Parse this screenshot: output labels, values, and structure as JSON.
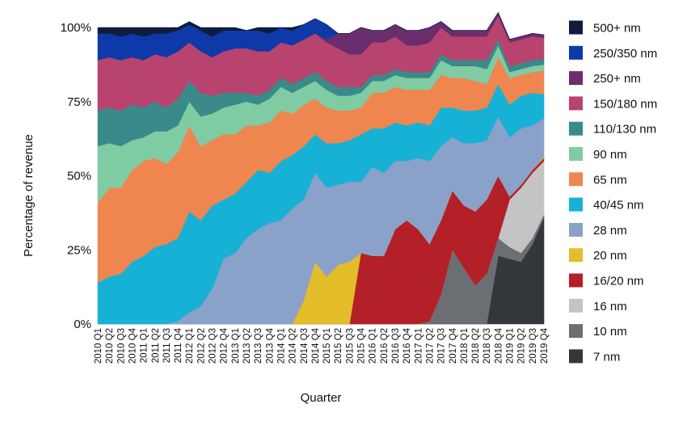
{
  "chart_data": {
    "type": "area",
    "stacked": "percent",
    "xlabel": "Quarter",
    "ylabel": "Percentage of revenue",
    "ylim": [
      0,
      100
    ],
    "yticks": [
      0,
      25,
      50,
      75,
      100
    ],
    "ytick_labels": [
      "0%",
      "25%",
      "50%",
      "75%",
      "100%"
    ],
    "grid": false,
    "legend_position": "right",
    "categories": [
      "2010 Q1",
      "2010 Q2",
      "2010 Q3",
      "2010 Q4",
      "2011 Q1",
      "2011 Q2",
      "2011 Q3",
      "2011 Q4",
      "2012 Q1",
      "2012 Q2",
      "2012 Q3",
      "2012 Q4",
      "2013 Q1",
      "2013 Q2",
      "2013 Q3",
      "2013 Q4",
      "2014 Q1",
      "2014 Q2",
      "2014 Q3",
      "2014 Q4",
      "2015 Q1",
      "2015 Q2",
      "2015 Q3",
      "2015 Q4",
      "2016 Q1",
      "2016 Q2",
      "2016 Q3",
      "2016 Q4",
      "2017 Q1",
      "2017 Q2",
      "2017 Q3",
      "2017 Q4",
      "2018 Q1",
      "2018 Q2",
      "2018 Q3",
      "2018 Q4",
      "2019 Q1",
      "2019 Q2",
      "2019 Q3",
      "2019 Q4"
    ],
    "series": [
      {
        "name": "7 nm",
        "color": "#33363b",
        "values": [
          0,
          0,
          0,
          0,
          0,
          0,
          0,
          0,
          0,
          0,
          0,
          0,
          0,
          0,
          0,
          0,
          0,
          0,
          0,
          0,
          0,
          0,
          0,
          0,
          0,
          0,
          0,
          0,
          0,
          0,
          0,
          0,
          0,
          0,
          0,
          23,
          22,
          21,
          27,
          36
        ]
      },
      {
        "name": "10 nm",
        "color": "#6b6e72",
        "values": [
          0,
          0,
          0,
          0,
          0,
          0,
          0,
          0,
          0,
          0,
          0,
          0,
          0,
          0,
          0,
          0,
          0,
          0,
          0,
          0,
          0,
          0,
          0,
          0,
          0,
          0,
          0,
          0,
          0,
          1,
          10,
          25,
          19,
          13,
          17,
          6,
          4,
          3,
          2,
          1
        ]
      },
      {
        "name": "16 nm",
        "color": "#c4c4c4",
        "values": [
          0,
          0,
          0,
          0,
          0,
          0,
          0,
          0,
          0,
          0,
          0,
          0,
          0,
          0,
          0,
          0,
          0,
          0,
          0,
          0,
          0,
          0,
          0,
          0,
          0,
          0,
          0,
          0,
          0,
          0,
          0,
          0,
          0,
          0,
          0,
          0,
          16,
          22,
          22,
          18
        ]
      },
      {
        "name": "16/20 nm",
        "color": "#b42027",
        "values": [
          0,
          0,
          0,
          0,
          0,
          0,
          0,
          0,
          0,
          0,
          0,
          0,
          0,
          0,
          0,
          0,
          0,
          0,
          0,
          0,
          0,
          0,
          0,
          24,
          23,
          23,
          32,
          35,
          32,
          26,
          25,
          20,
          21,
          25,
          25,
          21,
          1,
          1,
          1,
          1
        ]
      },
      {
        "name": "20 nm",
        "color": "#e3bd2a",
        "values": [
          0,
          0,
          0,
          0,
          0,
          0,
          0,
          0,
          0,
          0,
          0,
          0,
          0,
          0,
          0,
          0,
          0,
          0,
          8,
          21,
          16,
          20,
          21,
          0,
          0,
          0,
          0,
          0,
          0,
          0,
          0,
          0,
          0,
          0,
          0,
          0,
          0,
          0,
          0,
          0.5
        ]
      },
      {
        "name": "28 nm",
        "color": "#8aa1c9",
        "values": [
          0,
          0,
          0,
          0,
          0,
          0,
          0,
          1,
          4,
          6,
          12,
          22,
          24,
          29,
          32,
          34,
          35,
          39,
          34,
          30,
          30,
          27,
          27,
          24,
          30,
          28,
          23,
          20,
          24,
          28,
          25,
          18,
          21,
          23,
          20,
          20,
          20,
          19,
          15,
          13
        ]
      },
      {
        "name": "40/45 nm",
        "color": "#18b1d6",
        "values": [
          14,
          16,
          17,
          21,
          23,
          26,
          27,
          28,
          34,
          29,
          28,
          20,
          20,
          19,
          20,
          17,
          20,
          18,
          18,
          13,
          15,
          14,
          14,
          16,
          13,
          15,
          13,
          12,
          12,
          12,
          13,
          10,
          11,
          11,
          11,
          11,
          11,
          11,
          11,
          8
        ]
      },
      {
        "name": "65 nm",
        "color": "#ef8650",
        "values": [
          27,
          30,
          29,
          31,
          32,
          30,
          27,
          29,
          29,
          25,
          22,
          22,
          20,
          19,
          15,
          17,
          17,
          14,
          14,
          12,
          12,
          11,
          10,
          9,
          12,
          12,
          12,
          12,
          11,
          12,
          11,
          10,
          11,
          10,
          8,
          9,
          9,
          7,
          7,
          8
        ]
      },
      {
        "name": "90 nm",
        "color": "#7fcba4",
        "values": [
          19,
          15,
          14,
          10,
          8,
          9,
          11,
          9,
          8,
          10,
          9,
          9,
          10,
          8,
          7,
          8,
          8,
          7,
          6,
          6,
          6,
          5,
          5,
          5,
          4,
          4,
          4,
          4,
          4,
          4,
          5,
          4,
          4,
          5,
          5,
          4,
          2,
          2,
          2,
          2
        ]
      },
      {
        "name": "110/130 nm",
        "color": "#3a8a8a",
        "values": [
          12,
          12,
          12,
          12,
          10,
          10,
          8,
          9,
          7,
          8,
          6,
          5,
          4,
          3,
          3,
          3,
          3,
          3,
          3,
          3,
          3,
          3,
          3,
          2,
          2,
          2,
          2,
          2,
          2,
          2,
          2,
          2,
          2,
          2,
          3,
          2,
          2,
          2,
          2,
          2
        ]
      },
      {
        "name": "150/180 nm",
        "color": "#b8436f",
        "values": [
          17,
          17,
          17,
          16,
          16,
          16,
          17,
          16,
          13,
          14,
          13,
          14,
          15,
          15,
          15,
          13,
          12,
          13,
          13,
          13,
          13,
          13,
          11,
          11,
          11,
          11,
          11,
          9,
          9,
          10,
          9,
          8,
          8,
          8,
          8,
          8,
          8,
          8,
          8,
          7
        ]
      },
      {
        "name": "250+ nm",
        "color": "#6a2d6e",
        "values": [
          0,
          0,
          0,
          0,
          0,
          0,
          0,
          0,
          0,
          0,
          0,
          0,
          0,
          0,
          0,
          0,
          0,
          0,
          0,
          0,
          1,
          5,
          7,
          9,
          4,
          4,
          4,
          5,
          5,
          5,
          2,
          2,
          2,
          2,
          2,
          1,
          1,
          1,
          1,
          1
        ]
      },
      {
        "name": "250/350 nm",
        "color": "#0d3aa8",
        "values": [
          9,
          8,
          8,
          8,
          8,
          7,
          8,
          7,
          6,
          7,
          7,
          7,
          6,
          6,
          7,
          6,
          5,
          5,
          5,
          5,
          5,
          0,
          0,
          0,
          0,
          0,
          0,
          0,
          0,
          0,
          0,
          0,
          0,
          0,
          0,
          0,
          0,
          0,
          0,
          0
        ]
      },
      {
        "name": "500+ nm",
        "color": "#0f1c3d",
        "values": [
          2,
          2,
          3,
          2,
          3,
          2,
          2,
          1,
          1,
          1,
          3,
          1,
          1,
          0,
          1,
          2,
          0,
          1,
          0,
          0,
          0,
          0,
          0,
          0,
          0,
          0,
          0,
          0,
          0,
          0,
          0,
          0,
          0,
          0,
          0,
          0,
          0,
          0,
          0,
          0
        ]
      }
    ],
    "legend_order": [
      "500+ nm",
      "250/350 nm",
      "250+ nm",
      "150/180 nm",
      "110/130 nm",
      "90 nm",
      "65 nm",
      "40/45 nm",
      "28 nm",
      "20 nm",
      "16/20 nm",
      "16 nm",
      "10 nm",
      "7 nm"
    ]
  }
}
